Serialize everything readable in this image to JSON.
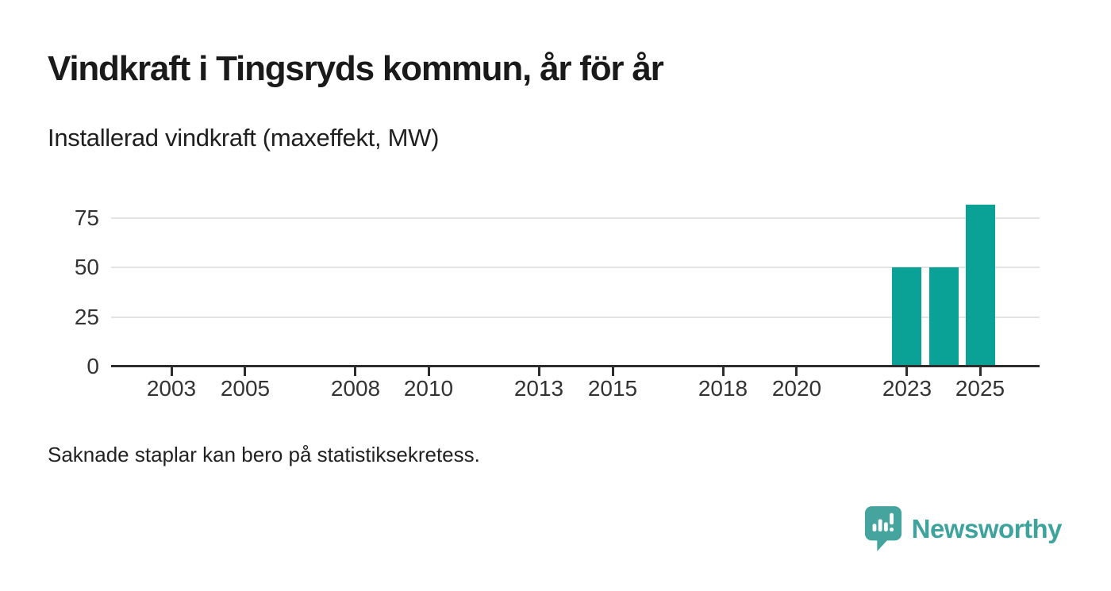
{
  "header": {
    "title": "Vindkraft i Tingsryds kommun, år för år",
    "subtitle": "Installerad vindkraft (maxeffekt, MW)"
  },
  "chart_data": {
    "type": "bar",
    "title": "Vindkraft i Tingsryds kommun, år för år",
    "subtitle": "Installerad vindkraft (maxeffekt, MW)",
    "ylabel": "Installerad vindkraft (maxeffekt, MW)",
    "series": [
      {
        "name": "Installerad vindkraft (maxeffekt, MW)",
        "points": [
          {
            "year": 2023,
            "value": 50
          },
          {
            "year": 2024,
            "value": 50
          },
          {
            "year": 2025,
            "value": 82
          }
        ]
      }
    ],
    "x_ticks": [
      2003,
      2005,
      2008,
      2010,
      2013,
      2015,
      2018,
      2020,
      2023,
      2025
    ],
    "y_ticks": [
      0,
      25,
      50,
      75
    ],
    "x_domain": [
      2001.4,
      2026.6
    ],
    "ylim": [
      0,
      85
    ],
    "grid": "horizontal-only",
    "legend": "none",
    "bar_color": "#0aa296",
    "note": "Missing years have no bars (no installed capacity shown)"
  },
  "footer": {
    "note": "Saknade staplar kan bero på statistiksekretess.",
    "brand_name": "Newsworthy"
  },
  "colors": {
    "bar": "#0aa296",
    "axis": "#2d2d2d",
    "gridline": "#e3e3e3",
    "title_text": "#1a1a1a",
    "body_text": "#222222",
    "tick_text": "#333333",
    "brand_teal": "#45a49e",
    "brand_text": "#3da39c",
    "background": "#ffffff"
  }
}
